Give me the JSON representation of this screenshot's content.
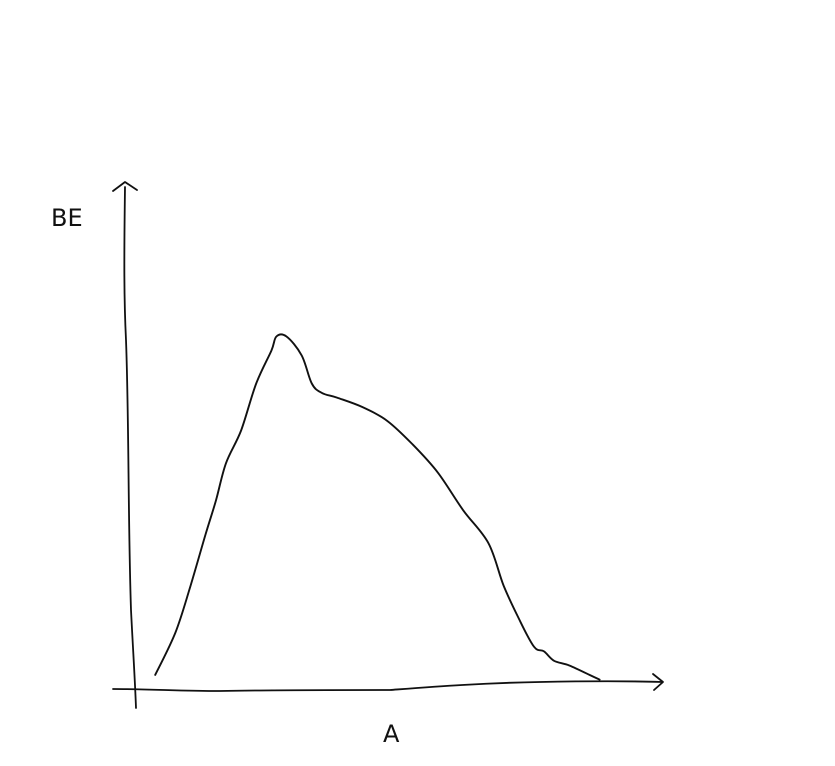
{
  "chart_data": {
    "type": "line",
    "title": "",
    "xlabel": "A",
    "ylabel": "BE",
    "grid": false,
    "legend": "none",
    "xlim": [
      0,
      100
    ],
    "ylim": [
      0,
      100
    ],
    "series": [
      {
        "name": "curve",
        "x": [
          4,
          8,
          11,
          14,
          16,
          18,
          21,
          24,
          27,
          28,
          30,
          33,
          35,
          37,
          40,
          45,
          50,
          55,
          60,
          65,
          70,
          73,
          76,
          79,
          81,
          83,
          86,
          90,
          92
        ],
        "y": [
          3,
          12,
          22,
          33,
          40,
          48,
          55,
          65,
          72,
          75,
          75,
          71,
          65,
          63,
          62,
          60,
          57,
          52,
          46,
          38,
          31,
          22,
          15,
          9,
          8,
          6,
          5,
          3,
          2
        ]
      }
    ]
  }
}
